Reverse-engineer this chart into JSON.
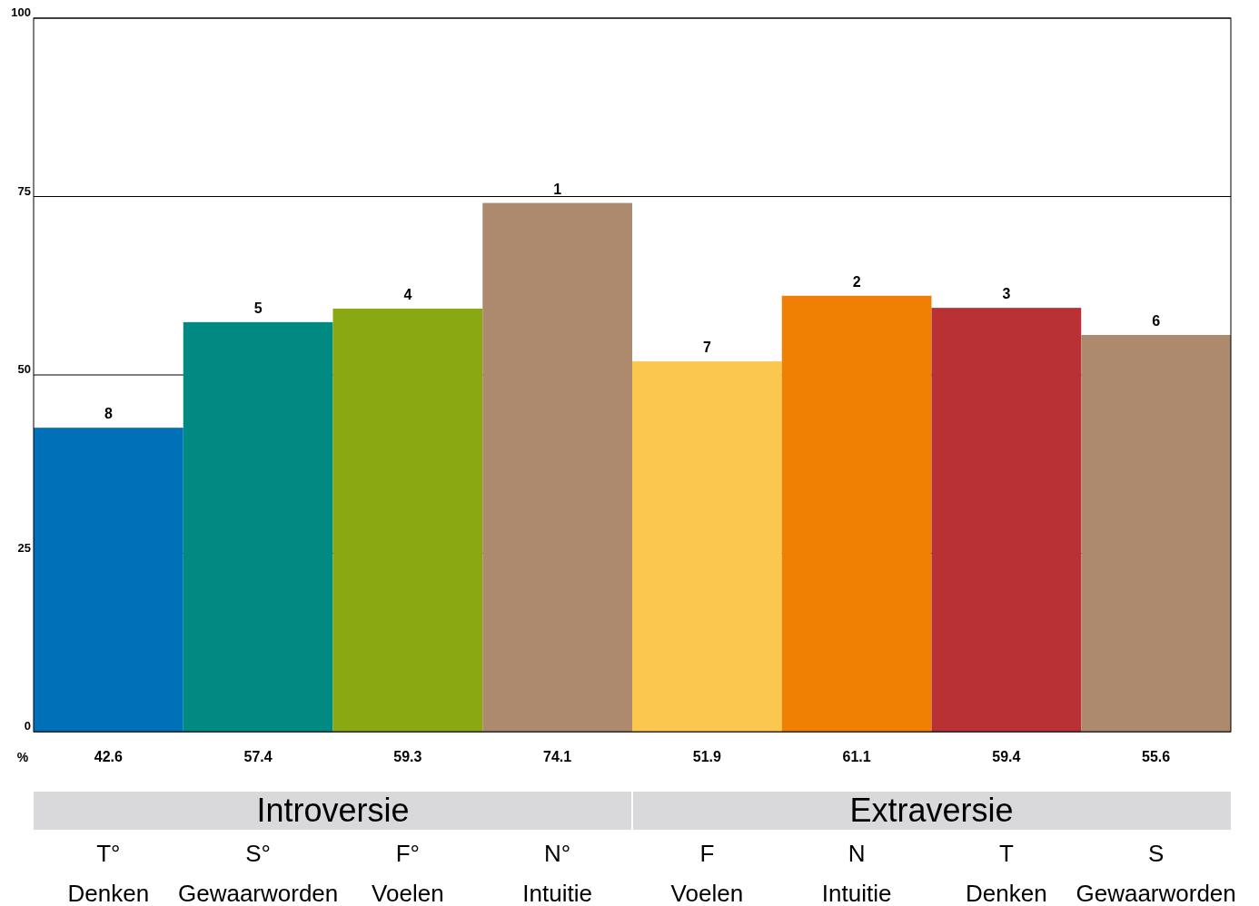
{
  "chart_data": {
    "type": "bar",
    "ylabel": "%",
    "categories": [
      "T°\nDenken",
      "S°\nGewaarworden",
      "F°\nVoelen",
      "N°\nIntuitie",
      "F\nVoelen",
      "N\nIntuitie",
      "T\nDenken",
      "S\nGewaarworden"
    ],
    "values": [
      42.6,
      57.4,
      59.3,
      74.1,
      51.9,
      61.1,
      59.4,
      55.6
    ],
    "colors": [
      "#0070b8",
      "#008a82",
      "#8aa812",
      "#ad8a6e",
      "#fcc74f",
      "#ef8004",
      "#b93035",
      "#ad8a6e"
    ],
    "data_labels": true,
    "ylim": [
      0,
      100
    ],
    "yticks": [
      0,
      25,
      50,
      75,
      100
    ],
    "grid": "y",
    "annotations": [
      "Introversie",
      "Extraversie",
      {
        "text": "8",
        "x": "T°\nDenken",
        "y": 42.6
      },
      {
        "text": "5",
        "x": "S°\nGewaarworden",
        "y": 57.4
      },
      {
        "text": "4",
        "x": "F°\nVoelen",
        "y": 59.3
      },
      {
        "text": "1",
        "x": "N°\nIntuitie",
        "y": 74.1
      },
      {
        "text": "7",
        "x": "F\nVoelen",
        "y": 51.9
      },
      {
        "text": "2",
        "x": "N\nIntuitie",
        "y": 61.1
      },
      {
        "text": "3",
        "x": "T\nDenken",
        "y": 59.4
      },
      {
        "text": "6",
        "x": "S\nGewaarworden",
        "y": 55.6
      }
    ]
  }
}
